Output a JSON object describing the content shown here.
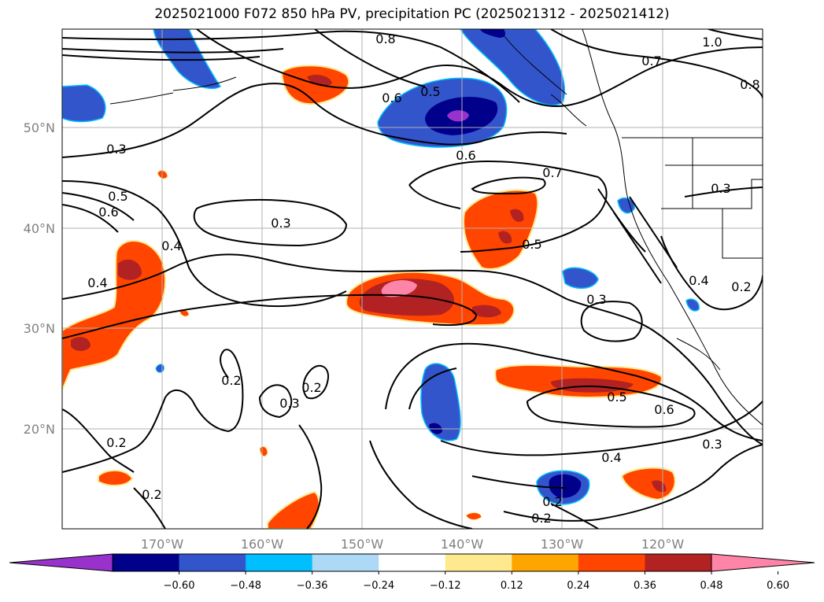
{
  "title": "2025021000 F072 850 hPa PV, precipitation PC (2025021312 - 2025021412)",
  "map": {
    "lon_labels": [
      "170°W",
      "160°W",
      "150°W",
      "140°W",
      "130°W",
      "120°W"
    ],
    "lat_labels": [
      "50°N",
      "40°N",
      "30°N",
      "20°N"
    ],
    "contour_labels": [
      "0.8",
      "1.0",
      "0.7",
      "0.8",
      "0.6",
      "0.5",
      "0.3",
      "0.6",
      "0.7",
      "0.3",
      "0.5",
      "0.6",
      "0.3",
      "0.4",
      "0.5",
      "0.4",
      "0.3",
      "0.4",
      "0.2",
      "0.2",
      "0.2",
      "0.3",
      "0.5",
      "0.6",
      "0.2",
      "0.4",
      "0.3",
      "0.2",
      "0.2",
      "0.2"
    ]
  },
  "colorbar": {
    "tick_labels": [
      "−0.60",
      "−0.48",
      "−0.36",
      "−0.24",
      "−0.12",
      "0.12",
      "0.24",
      "0.36",
      "0.48",
      "0.60"
    ],
    "colors": [
      "#9932cc",
      "#00008b",
      "#3355cc",
      "#00bfff",
      "#add8f6",
      "#ffffff",
      "#ffe98e",
      "#ffa500",
      "#ff4500",
      "#b22222",
      "#ff85a8"
    ]
  }
}
